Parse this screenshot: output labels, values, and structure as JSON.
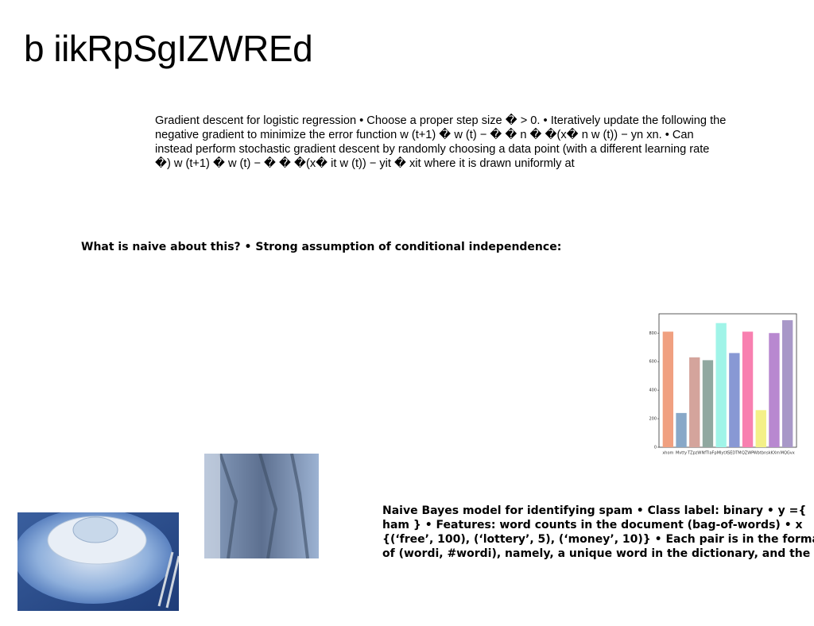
{
  "title": "b iikRpSgIZWREd",
  "paragraph": "Gradient descent for logistic regression • Choose a proper step size � > 0. • Iteratively update the following the negative gradient to minimize the error function w (t+1) � w (t) − � � n � �(x� n w (t)) − yn xn. • Can instead perform stochastic gradient descent by randomly choosing a data point (with a different learning rate �) w (t+1) � w (t) − � � �(x� it w (t)) − yit � xit where it is drawn uniformly at",
  "bold_line": "What is naive about this? • Strong assumption of conditional independence:",
  "bold_paragraph": "Naive Bayes model for identifying spam • Class label: binary • y ={ ham } • Features: word counts in the document (bag-of-words) • x {(‘free’, 100), (‘lottery’, 5), (‘money’, 10)} • Each pair is in the format of (wordi, #wordi), namely, a unique word in the dictionary, and the",
  "chart_data": {
    "type": "bar",
    "categories": [
      "xhom",
      "Mvtty",
      "TZpzW",
      "NfTlaF",
      "pMlytX",
      "SEDTM",
      "QZWP",
      "Wbtbns",
      "kKXm",
      "MQGvx"
    ],
    "values": [
      810,
      240,
      630,
      610,
      870,
      660,
      810,
      260,
      800,
      890
    ],
    "colors": [
      "#f0a080",
      "#88a8c8",
      "#d4a49c",
      "#90a8a0",
      "#a0f4e8",
      "#8898d4",
      "#f880b0",
      "#f4f088",
      "#b888d0",
      "#a898c8"
    ],
    "ylim": [
      0,
      935
    ],
    "yticks": [
      0,
      200,
      400,
      600,
      800
    ]
  }
}
